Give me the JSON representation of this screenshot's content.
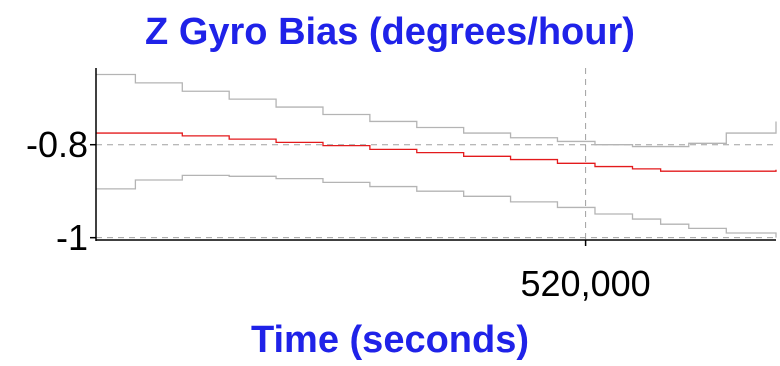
{
  "chart_data": {
    "type": "line",
    "title": "Z Gyro Bias (degrees/hour)",
    "xlabel": "Time (seconds)",
    "ylabel": "",
    "x_ticks": [
      {
        "value": 520000,
        "label": "520,000"
      }
    ],
    "y_ticks": [
      {
        "value": -0.8,
        "label": "-0.8"
      },
      {
        "value": -1.0,
        "label": "-1"
      }
    ],
    "xlim": [
      467800,
      540300
    ],
    "ylim": [
      -1.005,
      -0.635
    ],
    "grid": true,
    "legend": "none",
    "series": [
      {
        "color": "#e31a1c",
        "x": [
          467800,
          472000,
          477000,
          482000,
          487000,
          492000,
          497000,
          502000,
          507000,
          512000,
          517000,
          521000,
          525000,
          528000,
          531000,
          535000,
          540300
        ],
        "y": [
          -0.775,
          -0.775,
          -0.781,
          -0.788,
          -0.795,
          -0.802,
          -0.81,
          -0.817,
          -0.825,
          -0.832,
          -0.84,
          -0.847,
          -0.852,
          -0.857,
          -0.857,
          -0.857,
          -0.854
        ]
      },
      {
        "color": "#b4b4b4",
        "x": [
          467800,
          472000,
          477000,
          482000,
          487000,
          492000,
          497000,
          502000,
          507000,
          512000,
          517000,
          521000,
          525000,
          528000,
          531000,
          535000,
          540300
        ],
        "y": [
          -0.649,
          -0.667,
          -0.685,
          -0.702,
          -0.719,
          -0.735,
          -0.75,
          -0.763,
          -0.775,
          -0.785,
          -0.793,
          -0.8,
          -0.804,
          -0.804,
          -0.797,
          -0.775,
          -0.75
        ]
      },
      {
        "color": "#b4b4b4",
        "x": [
          467800,
          472000,
          477000,
          482000,
          487000,
          492000,
          497000,
          502000,
          507000,
          512000,
          517000,
          521000,
          525000,
          528000,
          531000,
          535000,
          540300
        ],
        "y": [
          -0.895,
          -0.876,
          -0.866,
          -0.868,
          -0.873,
          -0.881,
          -0.89,
          -0.9,
          -0.911,
          -0.923,
          -0.935,
          -0.949,
          -0.96,
          -0.971,
          -0.98,
          -0.99,
          -1.0
        ]
      }
    ],
    "colors": {
      "title": "#1f22e8",
      "axis": "#000000",
      "grid": "#a0a0a0"
    }
  }
}
